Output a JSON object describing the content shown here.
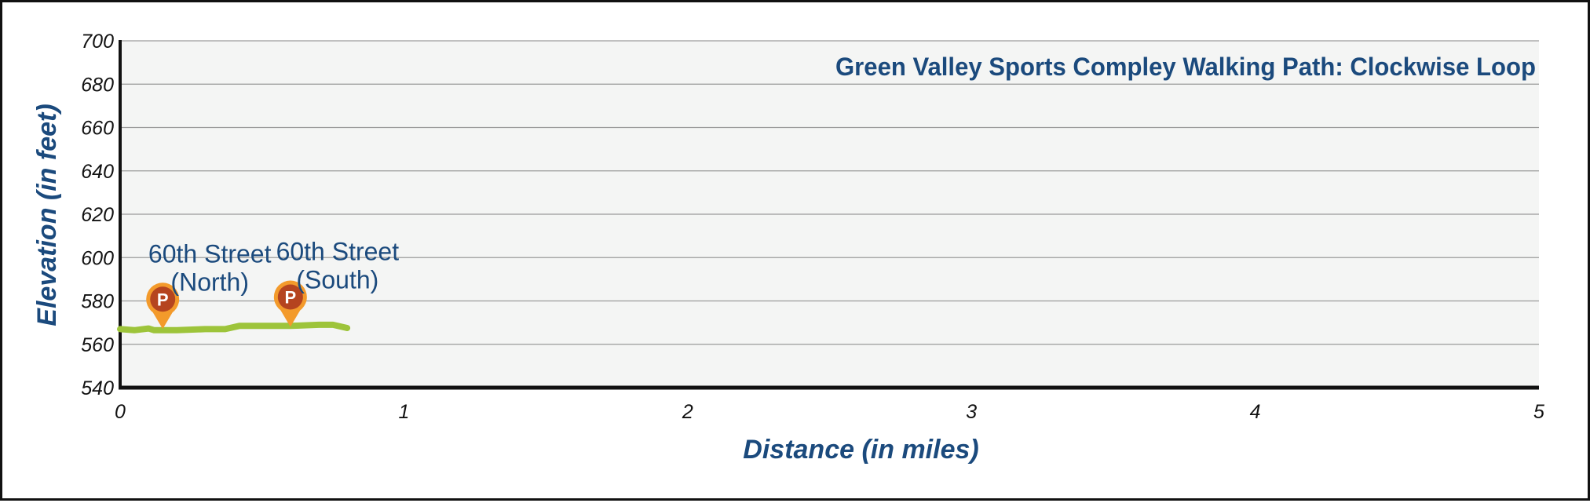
{
  "chart_data": {
    "type": "line",
    "title": "Green Valley Sports Compley Walking Path: Clockwise Loop",
    "xlabel": "Distance (in miles)",
    "ylabel": "Elevation (in feet)",
    "xlim": [
      0,
      5
    ],
    "ylim": [
      540,
      700
    ],
    "x_ticks": [
      "0",
      "1",
      "2",
      "3",
      "4",
      "5"
    ],
    "y_ticks": [
      "540",
      "560",
      "580",
      "600",
      "620",
      "640",
      "660",
      "680",
      "700"
    ],
    "grid": true,
    "series": [
      {
        "color": "#9dc43a",
        "points": [
          [
            0.0,
            567
          ],
          [
            0.05,
            566.5
          ],
          [
            0.1,
            567.3
          ],
          [
            0.12,
            566.5
          ],
          [
            0.2,
            566.5
          ],
          [
            0.3,
            567
          ],
          [
            0.37,
            567
          ],
          [
            0.42,
            568.5
          ],
          [
            0.5,
            568.5
          ],
          [
            0.6,
            568.5
          ],
          [
            0.7,
            569
          ],
          [
            0.75,
            569
          ],
          [
            0.8,
            567.5
          ]
        ]
      }
    ],
    "annotations": [
      {
        "line1": "60th Street",
        "line2": "(North)",
        "x": 0.15,
        "y": 579,
        "marker": "P",
        "marker_color": "#b5441f"
      },
      {
        "line1": "60th Street",
        "line2": "(South)",
        "x": 0.6,
        "y": 580,
        "marker": "P",
        "marker_color": "#b5441f"
      }
    ],
    "colors": {
      "text": "#1b4a7d",
      "plot_background": "#f4f5f4",
      "grid": "#9a9a9a",
      "axis": "#111111"
    }
  }
}
